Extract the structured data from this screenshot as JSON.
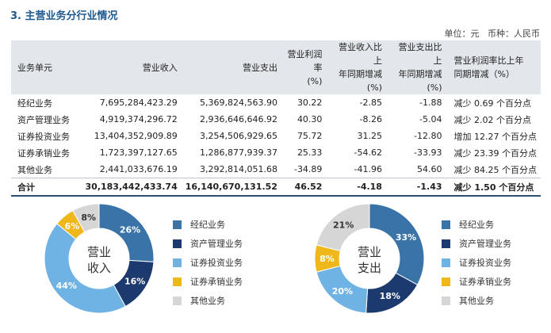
{
  "title": "3. 主营业务分行业情况",
  "unit_note": "单位：元   币种：人民币",
  "table": {
    "headers": [
      "业务单元",
      "营业收入",
      "营业支出",
      "营业利润率\n(%)",
      "营业收入比上\n年同期增减(%)",
      "营业支出比上\n年同期增减(%)",
      "营业利润率比上年\n同期增减（%）"
    ],
    "rows": [
      [
        "经纪业务",
        "7,695,284,423.29",
        "5,369,824,563.90",
        "30.22",
        "-2.85",
        "-1.88",
        "减少 0.69 个百分点"
      ],
      [
        "资产管理业务",
        "4,919,374,296.72",
        "2,936,646,646.92",
        "40.30",
        "-8.26",
        "-5.04",
        "减少 2.02 个百分点"
      ],
      [
        "证券投资业务",
        "13,404,352,909.89",
        "3,254,506,929.65",
        "75.72",
        "31.25",
        "-12.80",
        "增加 12.27 个百分点"
      ],
      [
        "证券承销业务",
        "1,723,397,127.65",
        "1,286,877,939.37",
        "25.33",
        "-54.62",
        "-33.93",
        "减少 23.39 个百分点"
      ],
      [
        "其他业务",
        "2,441,033,676.19",
        "3,292,814,051.68",
        "-34.89",
        "-41.96",
        "54.60",
        "减少 84.25 个百分点"
      ],
      [
        "合计",
        "30,183,442,433.74",
        "16,140,670,131.52",
        "46.52",
        "-4.18",
        "-1.43",
        "减少 1.50 个百分点"
      ]
    ]
  },
  "colors": {
    "经纪业务": "#3a73a8",
    "资产管理业务": "#1d3a6e",
    "证券投资业务": "#6fb3e4",
    "证券承销业务": "#efb71a",
    "其他业务": "#d6d6d6"
  },
  "chart_data": [
    {
      "type": "pie",
      "title": "营业收入",
      "categories": [
        "经纪业务",
        "资产管理业务",
        "证券投资业务",
        "证券承销业务",
        "其他业务"
      ],
      "values": [
        26,
        16,
        44,
        6,
        8
      ],
      "labels": [
        "26%",
        "16%",
        "44%",
        "6%",
        "8%"
      ],
      "legend_position": "right"
    },
    {
      "type": "pie",
      "title": "营业支出",
      "categories": [
        "经纪业务",
        "资产管理业务",
        "证券投资业务",
        "证券承销业务",
        "其他业务"
      ],
      "values": [
        33,
        18,
        20,
        8,
        21
      ],
      "labels": [
        "33%",
        "18%",
        "20%",
        "8%",
        "21%"
      ],
      "legend_position": "right"
    }
  ]
}
